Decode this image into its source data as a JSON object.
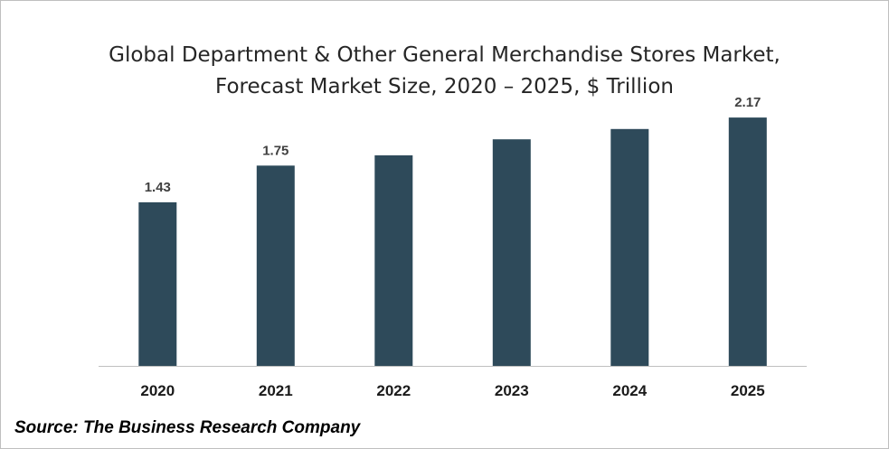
{
  "chart_data": {
    "type": "bar",
    "title_lines": [
      "Global Department & Other General Merchandise Stores Market,",
      "Forecast Market Size, 2020 – 2025, $ Trillion"
    ],
    "categories": [
      "2020",
      "2021",
      "2022",
      "2023",
      "2024",
      "2025"
    ],
    "values": [
      1.43,
      1.75,
      1.84,
      1.98,
      2.07,
      2.17
    ],
    "data_labels": [
      "1.43",
      "1.75",
      "",
      "",
      "",
      "2.17"
    ],
    "xlabel": "",
    "ylabel": "",
    "ylim": [
      0,
      2.4
    ],
    "grid": false,
    "legend": "none",
    "bar_color": "#2e4a5a"
  },
  "source": "Source: The Business Research Company"
}
